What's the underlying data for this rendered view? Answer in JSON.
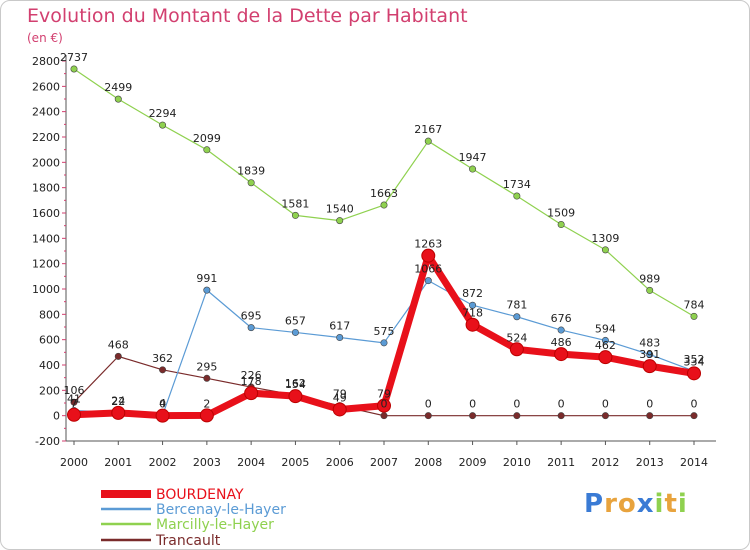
{
  "chart_data": {
    "type": "line",
    "title": "Evolution du Montant de la Dette par Habitant",
    "subtitle": "(en €)",
    "x": [
      "2000",
      "2001",
      "2002",
      "2003",
      "2004",
      "2005",
      "2006",
      "2007",
      "2008",
      "2009",
      "2010",
      "2011",
      "2012",
      "2013",
      "2014"
    ],
    "ylim": [
      -200,
      2800
    ],
    "yticks": [
      -200,
      0,
      200,
      400,
      600,
      800,
      1000,
      1200,
      1400,
      1600,
      1800,
      2000,
      2200,
      2400,
      2600,
      2800
    ],
    "grid": false,
    "legend_position": "bottom-left",
    "series": [
      {
        "name": "BOURDENAY",
        "color": "#e8101a",
        "values": [
          7,
          22,
          0,
          2,
          178,
          154,
          49,
          79,
          1263,
          718,
          524,
          486,
          462,
          391,
          334
        ]
      },
      {
        "name": "Bercenay-le-Hayer",
        "color": "#5b9bd5",
        "values": [
          41,
          24,
          4,
          991,
          695,
          657,
          617,
          575,
          1066,
          872,
          781,
          676,
          594,
          483,
          352
        ]
      },
      {
        "name": "Marcilly-le-Hayer",
        "color": "#8fd14f",
        "values": [
          2737,
          2499,
          2294,
          2099,
          1839,
          1581,
          1540,
          1663,
          2167,
          1947,
          1734,
          1509,
          1309,
          989,
          784
        ]
      },
      {
        "name": "Trancault",
        "color": "#7a2b2b",
        "values": [
          106,
          468,
          362,
          295,
          226,
          162,
          79,
          0,
          0,
          0,
          0,
          0,
          0,
          0,
          0
        ]
      }
    ]
  },
  "logo": {
    "letters": [
      "P",
      "r",
      "o",
      "x",
      "i",
      "t",
      "i"
    ],
    "colors": [
      "#3a7bd5",
      "#e8a33d",
      "#e8a33d",
      "#3a7bd5",
      "#8fd14f",
      "#e8a33d",
      "#8fd14f"
    ]
  }
}
